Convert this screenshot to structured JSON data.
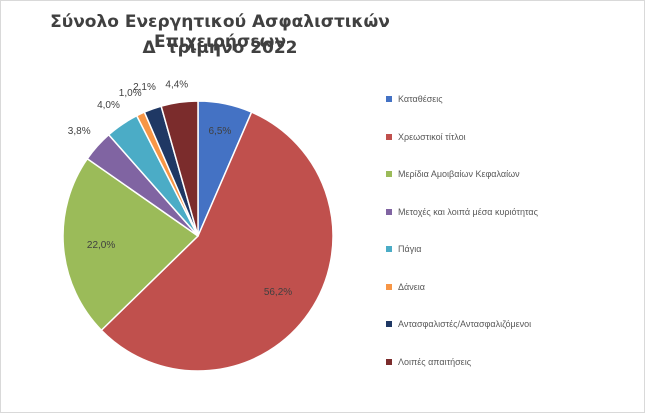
{
  "chart_data": {
    "type": "pie",
    "title": "Σύνολο Ενεργητικού Ασφαλιστικών Επιχειρήσεων",
    "subtitle": "Δ' τρίμηνο 2022",
    "legend_position": "right",
    "slices": [
      {
        "name": "Καταθέσεις",
        "value": 6.5,
        "label": "6,5%",
        "color": "#4472c4"
      },
      {
        "name": "Χρεωστικοί τίτλοι",
        "value": 56.2,
        "label": "56,2%",
        "color": "#c0504d"
      },
      {
        "name": "Μερίδια Αμοιβαίων Κεφαλαίων",
        "value": 22.0,
        "label": "22,0%",
        "color": "#9bbb59"
      },
      {
        "name": "Μετοχές και λοιπά μέσα κυριότητας",
        "value": 3.8,
        "label": "3,8%",
        "color": "#8064a2"
      },
      {
        "name": "Πάγια",
        "value": 4.0,
        "label": "4,0%",
        "color": "#4bacc6"
      },
      {
        "name": "Δάνεια",
        "value": 1.0,
        "label": "1,0%",
        "color": "#f79646"
      },
      {
        "name": "Αντασφαλιστές/Αντασφαλιζόμενοι",
        "value": 2.1,
        "label": "2,1%",
        "color": "#1f3864"
      },
      {
        "name": "Λοιπές απαιτήσεις",
        "value": 4.4,
        "label": "4,4%",
        "color": "#7b2c2c"
      }
    ]
  }
}
